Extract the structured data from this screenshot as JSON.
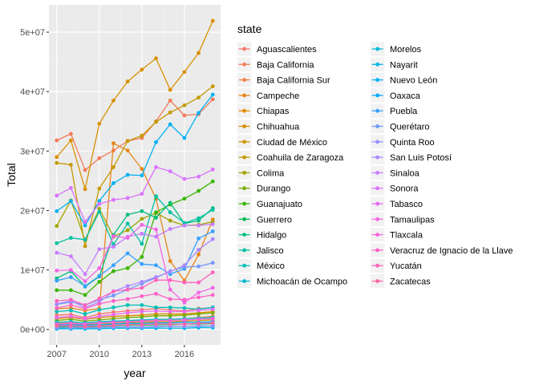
{
  "chart_data": {
    "type": "line",
    "xlabel": "year",
    "ylabel": "Total",
    "legend_title": "state",
    "legend_position": "right",
    "grid": true,
    "xlim": [
      2006.45,
      2018.55
    ],
    "ylim": [
      -2600000,
      54600000
    ],
    "x_ticks": [
      2007,
      2010,
      2013,
      2016
    ],
    "x_tick_labels": [
      "2007",
      "2010",
      "2013",
      "2016"
    ],
    "y_ticks": [
      0,
      10000000,
      20000000,
      30000000,
      40000000,
      50000000
    ],
    "y_tick_labels": [
      "0e+00",
      "1e+07",
      "2e+07",
      "3e+07",
      "4e+07",
      "5e+07"
    ],
    "x": [
      2007,
      2008,
      2009,
      2010,
      2011,
      2012,
      2013,
      2014,
      2015,
      2016,
      2017,
      2018
    ],
    "series": [
      {
        "name": "Aguascalientes",
        "color": "#F8766D",
        "values": [
          2400000,
          2500000,
          2000000,
          2600000,
          2900000,
          3100000,
          3300000,
          3500000,
          3300000,
          3100000,
          3500000,
          3700000
        ]
      },
      {
        "name": "Baja California",
        "color": "#F37B59",
        "values": [
          31800000,
          32900000,
          26800000,
          28800000,
          30100000,
          31700000,
          32200000,
          35000000,
          38500000,
          36000000,
          36200000,
          38700000
        ]
      },
      {
        "name": "Baja California Sur",
        "color": "#ED8141",
        "values": [
          1000000,
          1100000,
          900000,
          1200000,
          1300000,
          1400000,
          1500000,
          1600000,
          1700000,
          1800000,
          2000000,
          2200000
        ]
      },
      {
        "name": "Campeche",
        "color": "#E7861B",
        "values": [
          3500000,
          3600000,
          3200000,
          3500000,
          31300000,
          30100000,
          27000000,
          22000000,
          11500000,
          8200000,
          12600000,
          18500000
        ]
      },
      {
        "name": "Chiapas",
        "color": "#E08B00",
        "values": [
          1800000,
          2000000,
          1700000,
          2000000,
          2200000,
          2300000,
          2400000,
          2600000,
          2600000,
          2600000,
          2800000,
          3000000
        ]
      },
      {
        "name": "Chihuahua",
        "color": "#D89000",
        "values": [
          29000000,
          31800000,
          23600000,
          34600000,
          38500000,
          41700000,
          43700000,
          45600000,
          40300000,
          43300000,
          46500000,
          51900000
        ]
      },
      {
        "name": "Ciudad de México",
        "color": "#CF9400",
        "values": [
          800000,
          900000,
          800000,
          900000,
          1000000,
          1100000,
          1200000,
          1300000,
          1300000,
          1400000,
          1500000,
          1600000
        ]
      },
      {
        "name": "Coahuila de Zaragoza",
        "color": "#C59900",
        "values": [
          28000000,
          27700000,
          14000000,
          23700000,
          27300000,
          31700000,
          32600000,
          34900000,
          36500000,
          37700000,
          39000000,
          40900000
        ]
      },
      {
        "name": "Colima",
        "color": "#A3A500",
        "values": [
          17400000,
          21700000,
          15000000,
          20300000,
          15600000,
          16700000,
          18600000,
          19600000,
          18300000,
          17500000,
          17600000,
          18100000
        ]
      },
      {
        "name": "Durango",
        "color": "#7CAE00",
        "values": [
          1500000,
          1700000,
          1400000,
          1600000,
          1800000,
          2000000,
          2100000,
          2300000,
          2300000,
          2400000,
          2600000,
          2800000
        ]
      },
      {
        "name": "Guanajuato",
        "color": "#39B600",
        "values": [
          6600000,
          6600000,
          5800000,
          8000000,
          9800000,
          10300000,
          12200000,
          19700000,
          21000000,
          22000000,
          23300000,
          24900000
        ]
      },
      {
        "name": "Guerrero",
        "color": "#00BB4E",
        "values": [
          400000,
          500000,
          400000,
          500000,
          600000,
          700000,
          700000,
          800000,
          800000,
          900000,
          900000,
          1000000
        ]
      },
      {
        "name": "Hidalgo",
        "color": "#00BF7D",
        "values": [
          8600000,
          9800000,
          7200000,
          8900000,
          15900000,
          19300000,
          19900000,
          18800000,
          21300000,
          17800000,
          18300000,
          20400000
        ]
      },
      {
        "name": "Jalisco",
        "color": "#00C1A3",
        "values": [
          14500000,
          15400000,
          15100000,
          19800000,
          14300000,
          17800000,
          14400000,
          22400000,
          19700000,
          17900000,
          18700000,
          20100000
        ]
      },
      {
        "name": "México",
        "color": "#00C0B8",
        "values": [
          3000000,
          3200000,
          2600000,
          3300000,
          3700000,
          4100000,
          4100000,
          3700000,
          3700000,
          3600000,
          3400000,
          3700000
        ]
      },
      {
        "name": "Michoacán de Ocampo",
        "color": "#00BDD0",
        "values": [
          1200000,
          1300000,
          1100000,
          1300000,
          1400000,
          1500000,
          1600000,
          1700000,
          1700000,
          1800000,
          1900000,
          2000000
        ]
      },
      {
        "name": "Morelos",
        "color": "#00BBDB",
        "values": [
          200000,
          300000,
          200000,
          300000,
          300000,
          400000,
          400000,
          400000,
          500000,
          500000,
          500000,
          600000
        ]
      },
      {
        "name": "Nayarit",
        "color": "#00B7E9",
        "values": [
          100000,
          100000,
          100000,
          100000,
          200000,
          200000,
          200000,
          200000,
          200000,
          200000,
          300000,
          300000
        ]
      },
      {
        "name": "Nuevo León",
        "color": "#00B1F3",
        "values": [
          19900000,
          21600000,
          17500000,
          21600000,
          24600000,
          26000000,
          25900000,
          31500000,
          34500000,
          32200000,
          36400000,
          39500000
        ]
      },
      {
        "name": "Oaxaca",
        "color": "#00A9FF",
        "values": [
          700000,
          800000,
          700000,
          800000,
          900000,
          1000000,
          1000000,
          1100000,
          1100000,
          1200000,
          1200000,
          1300000
        ]
      },
      {
        "name": "Puebla",
        "color": "#35A2FF",
        "values": [
          8200000,
          8800000,
          7300000,
          9000000,
          10800000,
          12800000,
          11000000,
          10800000,
          9300000,
          10200000,
          15300000,
          16500000
        ]
      },
      {
        "name": "Querétaro",
        "color": "#7098FF",
        "values": [
          4200000,
          4600000,
          4100000,
          5000000,
          5700000,
          6700000,
          7700000,
          8700000,
          9800000,
          10500000,
          10600000,
          11200000
        ]
      },
      {
        "name": "Quinta Roo",
        "color": "#9590FF",
        "values": [
          300000,
          300000,
          300000,
          300000,
          400000,
          400000,
          400000,
          500000,
          500000,
          500000,
          600000,
          600000
        ]
      },
      {
        "name": "San Luis Potosí",
        "color": "#AC88FF",
        "values": [
          4300000,
          4800000,
          3700000,
          4600000,
          6400000,
          7300000,
          8000000,
          8800000,
          9700000,
          10800000,
          13400000,
          15200000
        ]
      },
      {
        "name": "Sinaloa",
        "color": "#C77CFF",
        "values": [
          12900000,
          12300000,
          9300000,
          13500000,
          13900000,
          15600000,
          16100000,
          15600000,
          16900000,
          17500000,
          17500000,
          17700000
        ]
      },
      {
        "name": "Sonora",
        "color": "#DC71FA",
        "values": [
          22500000,
          23800000,
          18100000,
          21100000,
          21800000,
          22100000,
          22800000,
          27300000,
          26600000,
          25300000,
          25700000,
          26900000
        ]
      },
      {
        "name": "Tabasco",
        "color": "#E76BF3",
        "values": [
          2000000,
          2200000,
          1800000,
          2200000,
          2500000,
          2800000,
          3000000,
          3100000,
          3000000,
          3000000,
          3200000,
          3400000
        ]
      },
      {
        "name": "Tamaulipas",
        "color": "#F265E7",
        "values": [
          9900000,
          10000000,
          8100000,
          10300000,
          15700000,
          15400000,
          17600000,
          16800000,
          6700000,
          4500000,
          6200000,
          7000000
        ]
      },
      {
        "name": "Tlaxcala",
        "color": "#FA62DB",
        "values": [
          900000,
          1000000,
          900000,
          1100000,
          1200000,
          1300000,
          1400000,
          1500000,
          1500000,
          1600000,
          1700000,
          1800000
        ]
      },
      {
        "name": "Veracruz de Ignacio de la Llave",
        "color": "#FF61C9",
        "values": [
          3600000,
          4100000,
          3500000,
          4300000,
          4800000,
          5100000,
          5600000,
          6000000,
          5100000,
          5000000,
          5400000,
          5800000
        ]
      },
      {
        "name": "Yucatán",
        "color": "#FF62BC",
        "values": [
          4800000,
          5000000,
          4100000,
          5200000,
          6400000,
          6700000,
          7000000,
          8300000,
          8300000,
          7900000,
          7900000,
          9600000
        ]
      },
      {
        "name": "Zacatecas",
        "color": "#FF67A4",
        "values": [
          600000,
          600000,
          500000,
          600000,
          700000,
          800000,
          800000,
          900000,
          900000,
          900000,
          1000000,
          1100000
        ]
      }
    ]
  }
}
